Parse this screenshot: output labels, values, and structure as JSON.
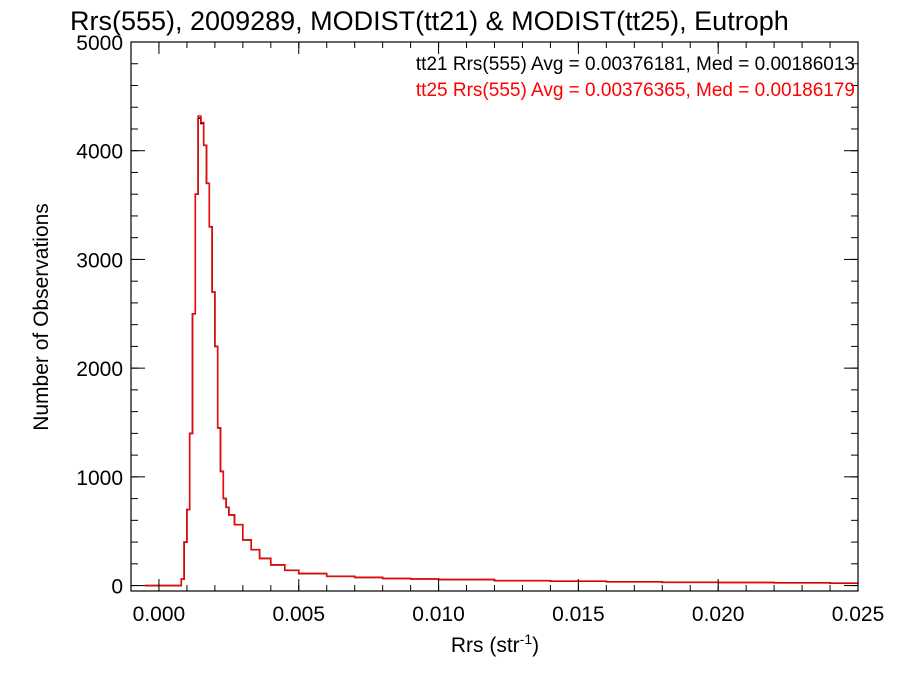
{
  "chart_data": {
    "type": "line",
    "title": "Rrs(555), 2009289, MODIST(tt21) & MODIST(tt25), Eutroph",
    "xlabel": "Rrs (str",
    "xlabel_sup": "-1",
    "xlabel_close": ")",
    "ylabel": "Number of Observations",
    "xlim": [
      -0.001,
      0.025
    ],
    "ylim": [
      -50,
      5000
    ],
    "x_ticks": [
      0.0,
      0.005,
      0.01,
      0.015,
      0.02,
      0.025
    ],
    "x_tick_labels": [
      "0.000",
      "0.005",
      "0.010",
      "0.015",
      "0.020",
      "0.025"
    ],
    "y_ticks": [
      0,
      1000,
      2000,
      3000,
      4000,
      5000
    ],
    "y_tick_labels": [
      "0",
      "1000",
      "2000",
      "3000",
      "4000",
      "5000"
    ],
    "legend_position": "top-right",
    "series": [
      {
        "name": "tt21",
        "legend_text": "tt21 Rrs(555) Avg = 0.00376181, Med = 0.00186013",
        "color": "#000000",
        "x": [
          -0.0005,
          0.0005,
          0.0008,
          0.0009,
          0.001,
          0.0011,
          0.0012,
          0.0013,
          0.0014,
          0.0015,
          0.0016,
          0.0017,
          0.0018,
          0.0019,
          0.002,
          0.0021,
          0.0022,
          0.0023,
          0.0024,
          0.0025,
          0.0027,
          0.003,
          0.0033,
          0.0036,
          0.004,
          0.0045,
          0.005,
          0.006,
          0.007,
          0.008,
          0.009,
          0.01,
          0.012,
          0.014,
          0.016,
          0.018,
          0.02,
          0.022,
          0.024,
          0.025
        ],
        "y": [
          0,
          0,
          60,
          400,
          700,
          1400,
          2500,
          3600,
          4300,
          4250,
          4050,
          3700,
          3300,
          2700,
          2200,
          1450,
          1050,
          800,
          720,
          650,
          560,
          420,
          330,
          250,
          190,
          140,
          110,
          85,
          75,
          65,
          60,
          55,
          45,
          40,
          35,
          30,
          28,
          25,
          22,
          20
        ]
      },
      {
        "name": "tt25",
        "legend_text": "tt25 Rrs(555) Avg = 0.00376365, Med = 0.00186179",
        "color": "#ff0000",
        "x": [
          -0.0005,
          0.0005,
          0.0008,
          0.0009,
          0.001,
          0.0011,
          0.0012,
          0.0013,
          0.0014,
          0.0015,
          0.0016,
          0.0017,
          0.0018,
          0.0019,
          0.002,
          0.0021,
          0.0022,
          0.0023,
          0.0024,
          0.0025,
          0.0027,
          0.003,
          0.0033,
          0.0036,
          0.004,
          0.0045,
          0.005,
          0.006,
          0.007,
          0.008,
          0.009,
          0.01,
          0.012,
          0.014,
          0.016,
          0.018,
          0.02,
          0.022,
          0.024,
          0.025
        ],
        "y": [
          0,
          0,
          60,
          400,
          700,
          1400,
          2500,
          3600,
          4320,
          4260,
          4050,
          3700,
          3300,
          2700,
          2200,
          1450,
          1050,
          800,
          720,
          650,
          560,
          420,
          330,
          250,
          190,
          140,
          110,
          85,
          75,
          65,
          60,
          55,
          45,
          40,
          35,
          30,
          28,
          25,
          22,
          20
        ]
      }
    ]
  }
}
